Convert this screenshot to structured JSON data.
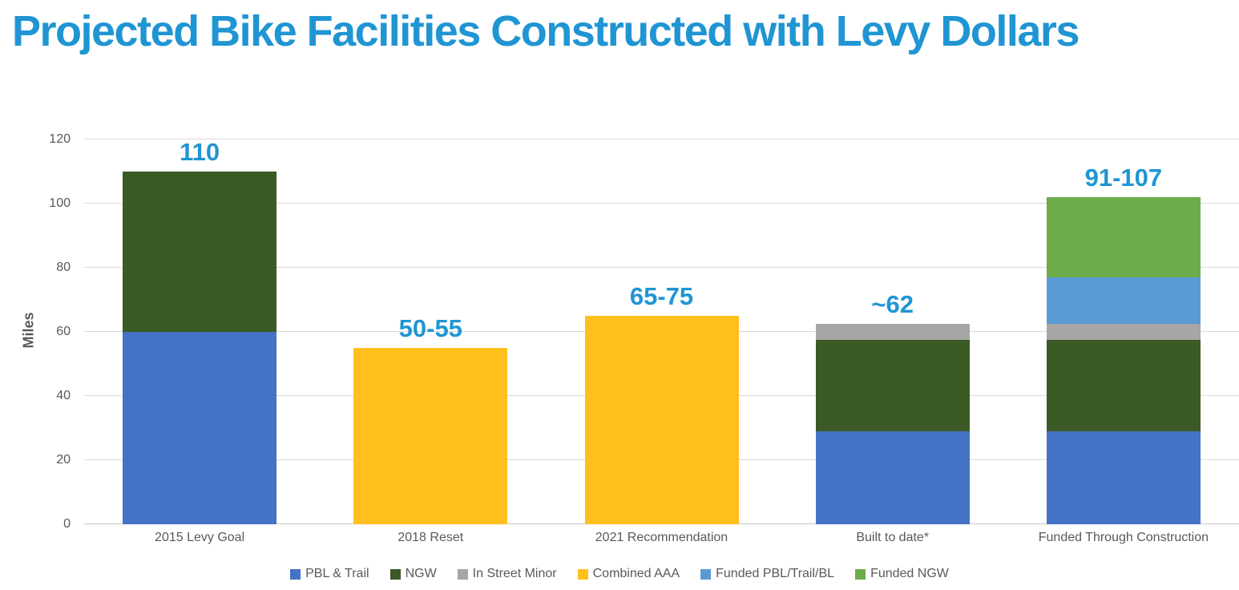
{
  "title": "Projected Bike Facilities Constructed with Levy Dollars",
  "colors": {
    "title_accent": "#2095D3",
    "data_label": "#2095D3",
    "axis_text": "#595959",
    "gridline": "#D9D9D9",
    "axis_line": "#C6C6C6",
    "background": "#FFFFFF"
  },
  "chart_data": {
    "type": "bar",
    "stacked": true,
    "title": "Projected Bike Facilities Constructed with Levy Dollars",
    "xlabel": "",
    "ylabel": "Miles",
    "ylim": [
      0,
      120
    ],
    "yticks": [
      0,
      20,
      40,
      60,
      80,
      100,
      120
    ],
    "grid": true,
    "legend_position": "bottom",
    "categories": [
      "2015 Levy Goal",
      "2018 Reset",
      "2021 Recommendation",
      "Built to date*",
      "Funded Through Construction"
    ],
    "bar_total_labels": [
      "110",
      "50-55",
      "65-75",
      "~62",
      "91-107"
    ],
    "series": [
      {
        "name": "PBL & Trail",
        "color": "#4472C4",
        "values": [
          60,
          0,
          0,
          29,
          29
        ]
      },
      {
        "name": "NGW",
        "color": "#3B5A26",
        "values": [
          50,
          0,
          0,
          28.5,
          28.5
        ]
      },
      {
        "name": "In Street Minor",
        "color": "#A6A6A6",
        "values": [
          0,
          0,
          0,
          5,
          5
        ]
      },
      {
        "name": "Combined AAA",
        "color": "#FFC01E",
        "values": [
          0,
          55,
          65,
          0,
          0
        ]
      },
      {
        "name": "Funded PBL/Trail/BL",
        "color": "#5B9BD5",
        "values": [
          0,
          0,
          0,
          0,
          14.5
        ]
      },
      {
        "name": "Funded NGW",
        "color": "#6CAC49",
        "values": [
          0,
          0,
          0,
          0,
          25
        ]
      }
    ]
  }
}
